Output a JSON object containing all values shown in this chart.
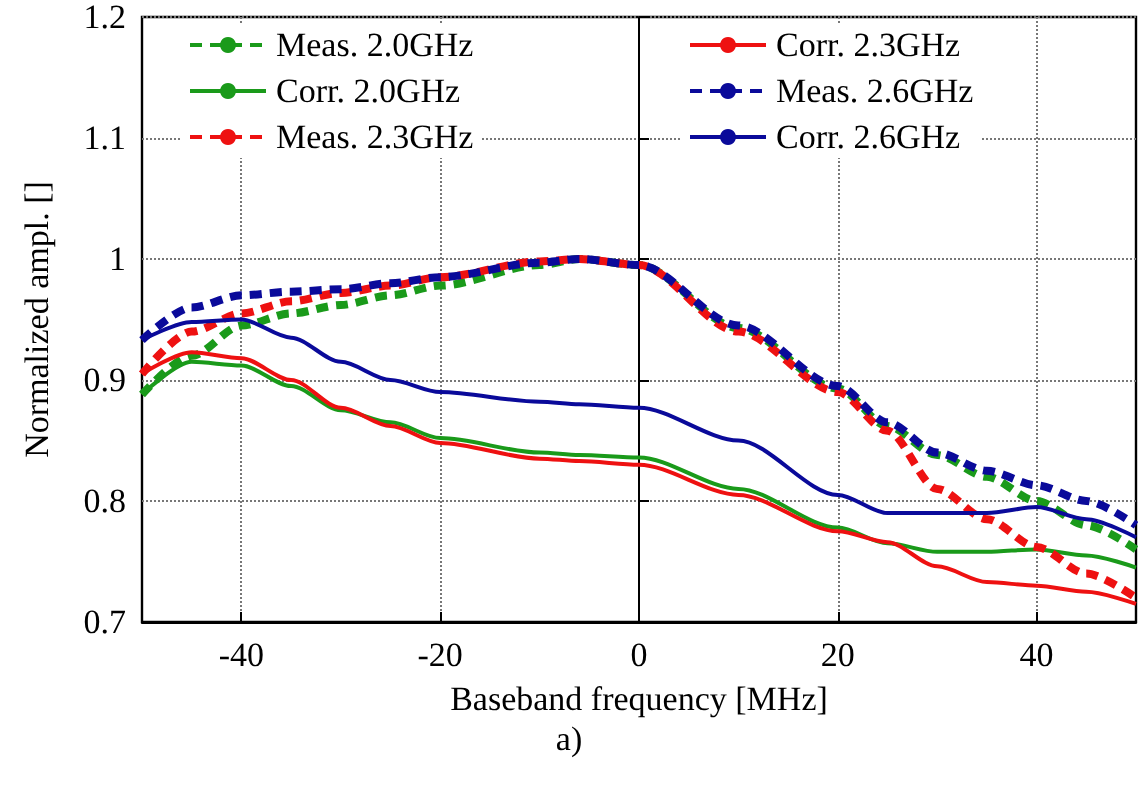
{
  "chart_data": {
    "type": "line",
    "xlabel": "Baseband frequency [MHz]",
    "ylabel": "Normalized ampl. []",
    "annotations": [
      "a)"
    ],
    "x": [
      -50,
      -45,
      -40,
      -35,
      -30,
      -25,
      -20,
      -10,
      -6,
      0,
      10,
      20,
      25,
      30,
      35,
      40,
      45,
      50
    ],
    "xlim": [
      -50,
      50
    ],
    "xticks": [
      -40,
      -20,
      0,
      20,
      40
    ],
    "ylim": [
      0.7,
      1.2
    ],
    "yticks": [
      0.7,
      0.8,
      0.9,
      1,
      1.1,
      1.2
    ],
    "grid": true,
    "legend": "top",
    "marker": "none",
    "series": [
      {
        "name": "Meas. 2.0GHz",
        "color": "#1a9a1a",
        "line_style": "dashed",
        "values": [
          0.888,
          0.92,
          0.945,
          0.955,
          0.962,
          0.97,
          0.978,
          0.995,
          1.0,
          0.995,
          0.943,
          0.893,
          0.862,
          0.838,
          0.82,
          0.8,
          0.78,
          0.76
        ]
      },
      {
        "name": "Corr. 2.0GHz",
        "color": "#1a9a1a",
        "line_style": "solid",
        "values": [
          0.888,
          0.915,
          0.912,
          0.895,
          0.875,
          0.865,
          0.852,
          0.84,
          0.838,
          0.836,
          0.81,
          0.778,
          0.765,
          0.758,
          0.758,
          0.76,
          0.755,
          0.745
        ]
      },
      {
        "name": "Meas. 2.3GHz",
        "color": "#ee1111",
        "line_style": "dashed",
        "values": [
          0.905,
          0.94,
          0.955,
          0.965,
          0.972,
          0.978,
          0.985,
          0.998,
          1.0,
          0.995,
          0.94,
          0.89,
          0.858,
          0.81,
          0.785,
          0.762,
          0.74,
          0.72
        ]
      },
      {
        "name": "Corr. 2.3GHz",
        "color": "#ee1111",
        "line_style": "solid",
        "values": [
          0.905,
          0.923,
          0.918,
          0.9,
          0.877,
          0.862,
          0.848,
          0.835,
          0.833,
          0.83,
          0.805,
          0.775,
          0.766,
          0.746,
          0.733,
          0.73,
          0.725,
          0.715
        ]
      },
      {
        "name": "Meas. 2.6GHz",
        "color": "#0a0a9a",
        "line_style": "dashed",
        "values": [
          0.933,
          0.96,
          0.97,
          0.973,
          0.975,
          0.98,
          0.985,
          0.997,
          1.0,
          0.995,
          0.945,
          0.895,
          0.865,
          0.84,
          0.825,
          0.813,
          0.8,
          0.78
        ]
      },
      {
        "name": "Corr. 2.6GHz",
        "color": "#0a0a9a",
        "line_style": "solid",
        "values": [
          0.933,
          0.948,
          0.95,
          0.935,
          0.915,
          0.9,
          0.89,
          0.882,
          0.88,
          0.877,
          0.85,
          0.805,
          0.79,
          0.79,
          0.79,
          0.795,
          0.785,
          0.77
        ]
      }
    ]
  }
}
